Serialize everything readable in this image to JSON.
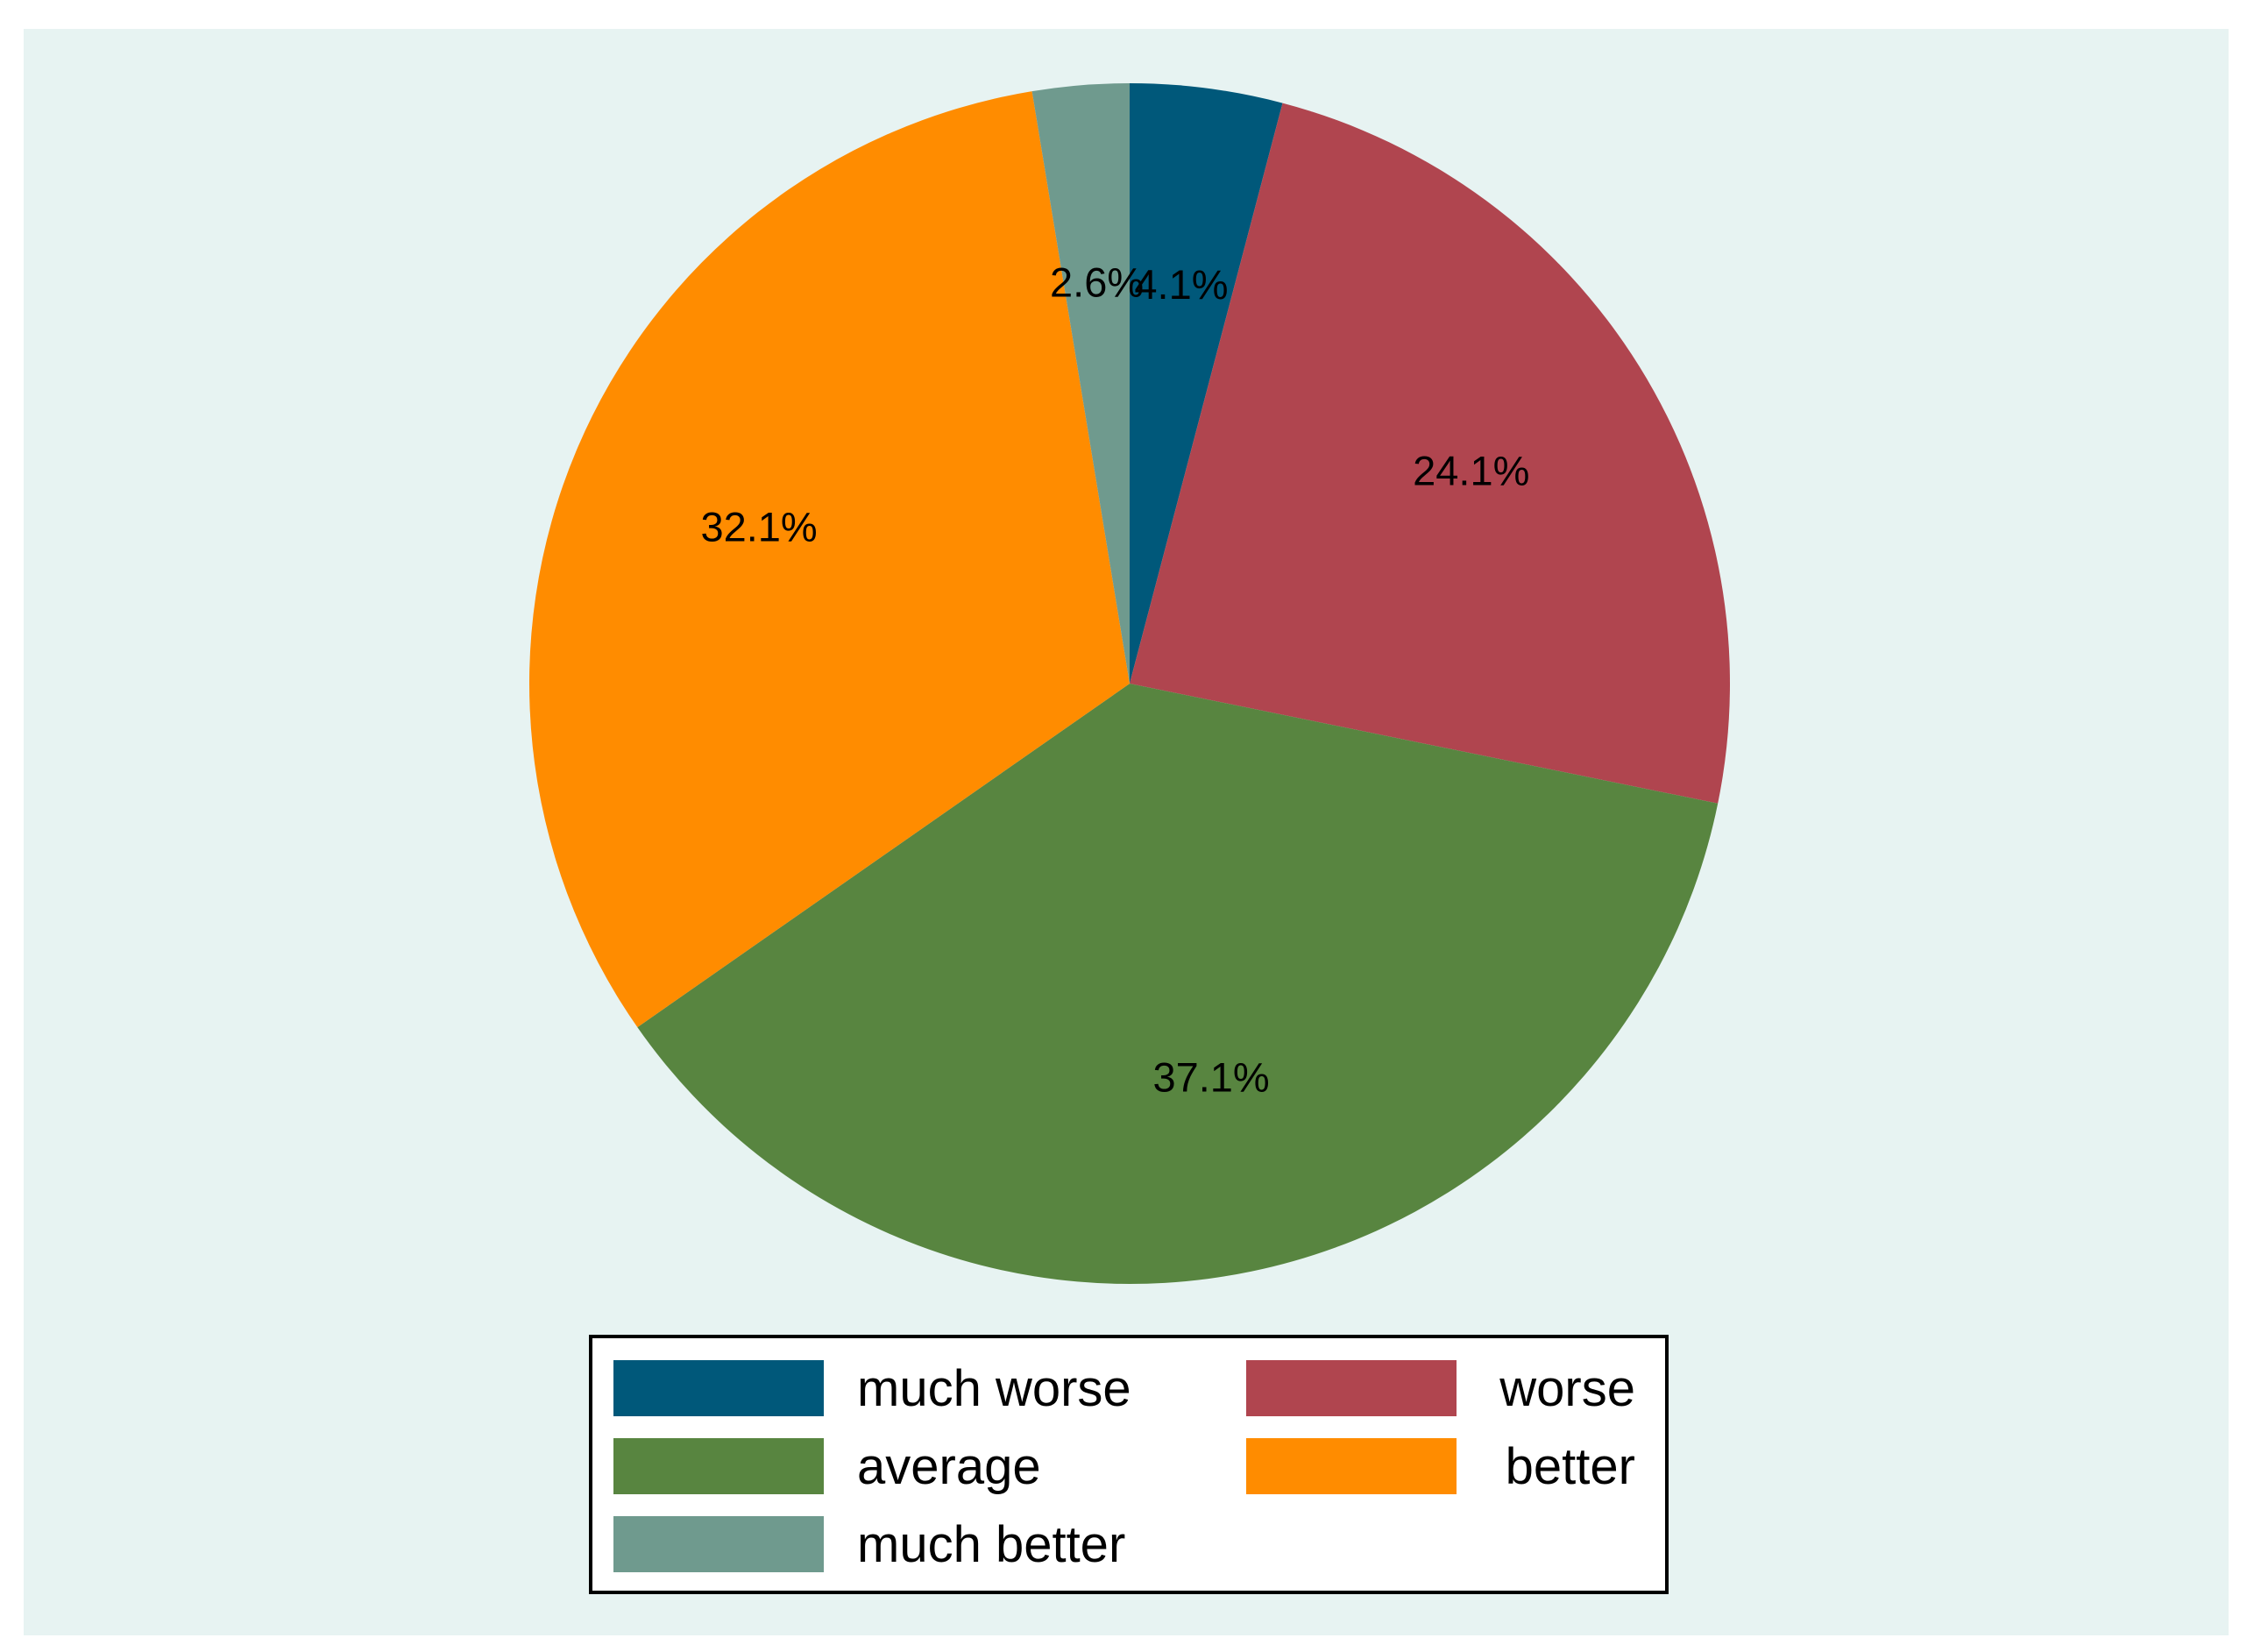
{
  "chart_data": {
    "type": "pie",
    "categories": [
      "much worse",
      "worse",
      "average",
      "better",
      "much better"
    ],
    "values": [
      4.1,
      24.1,
      37.1,
      32.1,
      2.6
    ],
    "labels": [
      "4.1%",
      "24.1%",
      "37.1%",
      "32.1%",
      "2.6%"
    ],
    "colors": [
      "#00587a",
      "#b0454f",
      "#588540",
      "#ff8c00",
      "#6f9a8e"
    ],
    "start_angle": "12 o'clock",
    "direction": "clockwise",
    "legend_position": "bottom",
    "legend_columns": 2,
    "background_color": "#e7f3f2"
  }
}
